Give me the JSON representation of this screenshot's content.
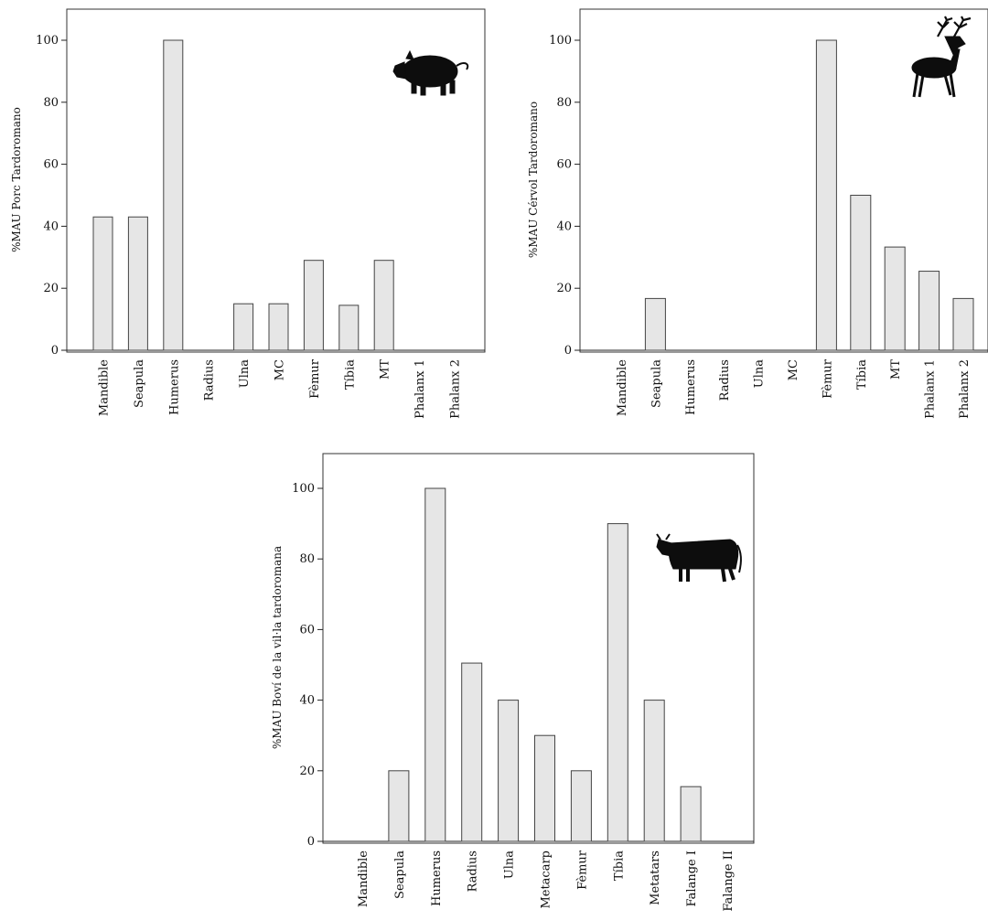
{
  "colors": {
    "bar_fill": "#e6e6e6",
    "bar_stroke": "#444444",
    "silhouette": "#0d0d0d"
  },
  "chart_data": [
    {
      "type": "bar",
      "title": "",
      "xlabel": "",
      "ylabel": "%MAU Porc Tardoromano",
      "icon": "pig-icon",
      "ylim": [
        0,
        110
      ],
      "yticks": [
        0,
        20,
        40,
        60,
        80,
        100
      ],
      "grid": false,
      "categories": [
        "Mandible",
        "Seapula",
        "Humerus",
        "Radius",
        "Ulna",
        "MC",
        "Fèmur",
        "Tíbia",
        "MT",
        "Phalanx 1",
        "Phalanx 2"
      ],
      "values": [
        43,
        43,
        100,
        0,
        15,
        15,
        29,
        14.5,
        29,
        0,
        0
      ]
    },
    {
      "type": "bar",
      "title": "",
      "xlabel": "",
      "ylabel": "%MAU Cérvol Tardoromano",
      "icon": "deer-icon",
      "ylim": [
        0,
        110
      ],
      "yticks": [
        0,
        20,
        40,
        60,
        80,
        100
      ],
      "grid": false,
      "categories": [
        "Mandible",
        "Seapula",
        "Humerus",
        "Radius",
        "Ulna",
        "MC",
        "Fèmur",
        "Tíbia",
        "MT",
        "Phalanx 1",
        "Phalanx 2"
      ],
      "values": [
        0,
        16.7,
        0,
        0,
        0,
        0,
        100,
        50,
        33.3,
        25.5,
        16.7
      ]
    },
    {
      "type": "bar",
      "title": "",
      "xlabel": "",
      "ylabel": "%MAU Boví de la vil·la tardoromana",
      "icon": "cow-icon",
      "ylim": [
        0,
        110
      ],
      "yticks": [
        0,
        20,
        40,
        60,
        80,
        100
      ],
      "grid": false,
      "categories": [
        "Mandible",
        "Seapula",
        "Humerus",
        "Radius",
        "Ulna",
        "Metacarp",
        "Fèmur",
        "Tíbia",
        "Metatars",
        "Falange I",
        "Falange II"
      ],
      "values": [
        0,
        20,
        100,
        50.5,
        40,
        30,
        20,
        90,
        40,
        15.5,
        0
      ]
    }
  ]
}
